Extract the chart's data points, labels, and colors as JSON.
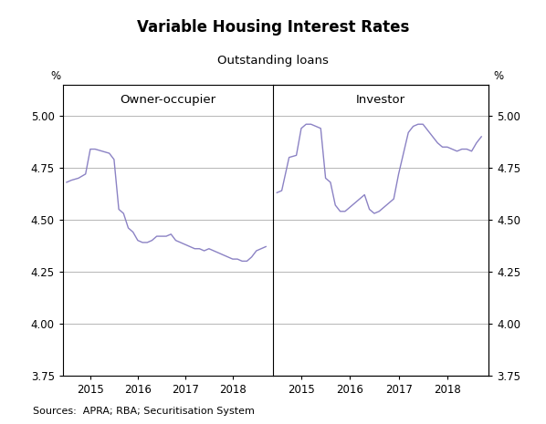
{
  "title": "Variable Housing Interest Rates",
  "subtitle": "Outstanding loans",
  "ylabel_left": "%",
  "ylabel_right": "%",
  "label_left": "Owner-occupier",
  "label_right": "Investor",
  "ylim": [
    3.75,
    5.15
  ],
  "yticks": [
    3.75,
    4.0,
    4.25,
    4.5,
    4.75,
    5.0
  ],
  "ytick_labels_left": [
    "3.75",
    "4.00",
    "4.25",
    "4.50",
    "4.75",
    "5.00"
  ],
  "ytick_labels_right": [
    "3.75",
    "4.00",
    "4.25",
    "4.50",
    "4.75",
    "5.00"
  ],
  "line_color": "#8B82C4",
  "source_text": "Sources:  APRA; RBA; Securitisation System",
  "owner_x": [
    2014.5,
    2014.6,
    2014.75,
    2014.9,
    2015.0,
    2015.1,
    2015.25,
    2015.4,
    2015.5,
    2015.6,
    2015.7,
    2015.8,
    2015.9,
    2016.0,
    2016.1,
    2016.2,
    2016.3,
    2016.4,
    2016.5,
    2016.6,
    2016.7,
    2016.8,
    2016.9,
    2017.0,
    2017.1,
    2017.2,
    2017.3,
    2017.4,
    2017.5,
    2017.6,
    2017.7,
    2017.8,
    2017.9,
    2018.0,
    2018.1,
    2018.2,
    2018.3,
    2018.4,
    2018.5,
    2018.6,
    2018.7
  ],
  "owner_y": [
    4.68,
    4.69,
    4.7,
    4.72,
    4.84,
    4.84,
    4.83,
    4.82,
    4.79,
    4.55,
    4.53,
    4.46,
    4.44,
    4.4,
    4.39,
    4.39,
    4.4,
    4.42,
    4.42,
    4.42,
    4.43,
    4.4,
    4.39,
    4.38,
    4.37,
    4.36,
    4.36,
    4.35,
    4.36,
    4.35,
    4.34,
    4.33,
    4.32,
    4.31,
    4.31,
    4.3,
    4.3,
    4.32,
    4.35,
    4.36,
    4.37
  ],
  "investor_x": [
    2014.5,
    2014.6,
    2014.75,
    2014.9,
    2015.0,
    2015.1,
    2015.2,
    2015.3,
    2015.4,
    2015.5,
    2015.6,
    2015.7,
    2015.8,
    2015.9,
    2016.0,
    2016.1,
    2016.2,
    2016.3,
    2016.4,
    2016.5,
    2016.6,
    2016.7,
    2016.8,
    2016.9,
    2017.0,
    2017.1,
    2017.2,
    2017.3,
    2017.4,
    2017.5,
    2017.6,
    2017.7,
    2017.8,
    2017.9,
    2018.0,
    2018.1,
    2018.2,
    2018.3,
    2018.4,
    2018.5,
    2018.6,
    2018.7
  ],
  "investor_y": [
    4.63,
    4.64,
    4.8,
    4.81,
    4.94,
    4.96,
    4.96,
    4.95,
    4.94,
    4.7,
    4.68,
    4.57,
    4.54,
    4.54,
    4.56,
    4.58,
    4.6,
    4.62,
    4.55,
    4.53,
    4.54,
    4.56,
    4.58,
    4.6,
    4.72,
    4.82,
    4.92,
    4.95,
    4.96,
    4.96,
    4.93,
    4.9,
    4.87,
    4.85,
    4.85,
    4.84,
    4.83,
    4.84,
    4.84,
    4.83,
    4.87,
    4.9
  ],
  "xticks_left": [
    2015,
    2016,
    2017,
    2018
  ],
  "xticks_right": [
    2015,
    2016,
    2017,
    2018
  ],
  "xlim_left": [
    2014.42,
    2018.85
  ],
  "xlim_right": [
    2014.42,
    2018.85
  ]
}
